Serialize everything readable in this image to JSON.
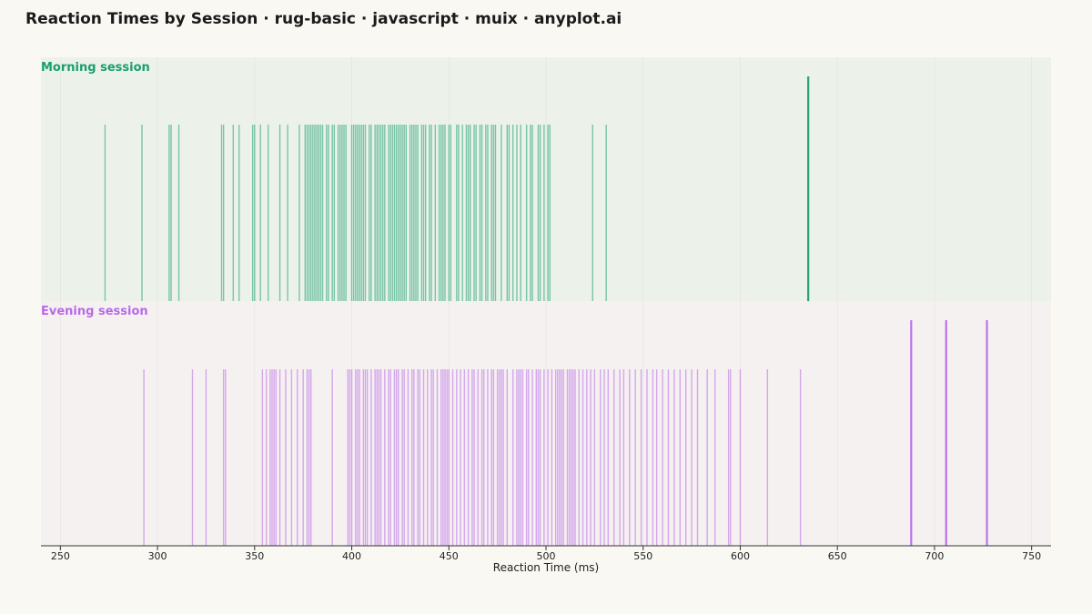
{
  "chart_data": {
    "type": "rug",
    "title": "Reaction Times by Session · rug-basic · javascript · muix · anyplot.ai",
    "xlabel": "Reaction Time (ms)",
    "ylabel": "",
    "xlim": [
      240,
      760
    ],
    "xticks": [
      250,
      300,
      350,
      400,
      450,
      500,
      550,
      600,
      650,
      700,
      750
    ],
    "grid": true,
    "series": [
      {
        "name": "Morning session",
        "color": "#1a9e70",
        "background": "#ecf2ea",
        "outliers": [
          635
        ],
        "values": [
          273,
          292,
          306,
          307,
          311,
          333,
          334,
          339,
          342,
          349,
          350,
          353,
          357,
          363,
          367,
          373,
          376,
          377,
          378,
          379,
          380,
          381,
          382,
          383,
          384,
          385,
          387,
          388,
          390,
          391,
          393,
          394,
          395,
          396,
          397,
          400,
          401,
          402,
          403,
          404,
          405,
          406,
          407,
          409,
          410,
          412,
          413,
          414,
          415,
          416,
          417,
          419,
          420,
          421,
          422,
          423,
          424,
          425,
          426,
          427,
          428,
          430,
          431,
          432,
          433,
          434,
          436,
          437,
          438,
          440,
          441,
          443,
          445,
          446,
          447,
          448,
          450,
          451,
          454,
          455,
          457,
          459,
          460,
          461,
          463,
          464,
          466,
          467,
          469,
          470,
          472,
          473,
          474,
          477,
          480,
          481,
          483,
          485,
          487,
          490,
          492,
          493,
          496,
          497,
          499,
          501,
          502,
          524,
          531
        ]
      },
      {
        "name": "Evening session",
        "color": "#b86ae8",
        "background": "#f6f1f1",
        "outliers": [
          688,
          706,
          727
        ],
        "values": [
          293,
          318,
          325,
          334,
          335,
          354,
          356,
          358,
          359,
          360,
          361,
          363,
          366,
          369,
          372,
          375,
          377,
          378,
          379,
          390,
          398,
          399,
          400,
          402,
          403,
          404,
          406,
          407,
          408,
          410,
          412,
          413,
          414,
          415,
          417,
          419,
          420,
          422,
          423,
          424,
          426,
          427,
          429,
          431,
          432,
          434,
          435,
          437,
          439,
          441,
          442,
          444,
          446,
          447,
          448,
          449,
          450,
          452,
          454,
          456,
          458,
          460,
          462,
          463,
          465,
          467,
          468,
          470,
          472,
          473,
          475,
          476,
          477,
          478,
          480,
          483,
          485,
          486,
          487,
          488,
          490,
          491,
          493,
          495,
          496,
          497,
          499,
          501,
          503,
          505,
          506,
          507,
          508,
          509,
          511,
          512,
          513,
          514,
          515,
          517,
          519,
          521,
          523,
          525,
          528,
          530,
          532,
          535,
          538,
          540,
          543,
          546,
          549,
          552,
          555,
          557,
          560,
          563,
          566,
          569,
          572,
          575,
          578,
          583,
          587,
          594,
          595,
          600,
          614,
          631
        ]
      }
    ]
  }
}
